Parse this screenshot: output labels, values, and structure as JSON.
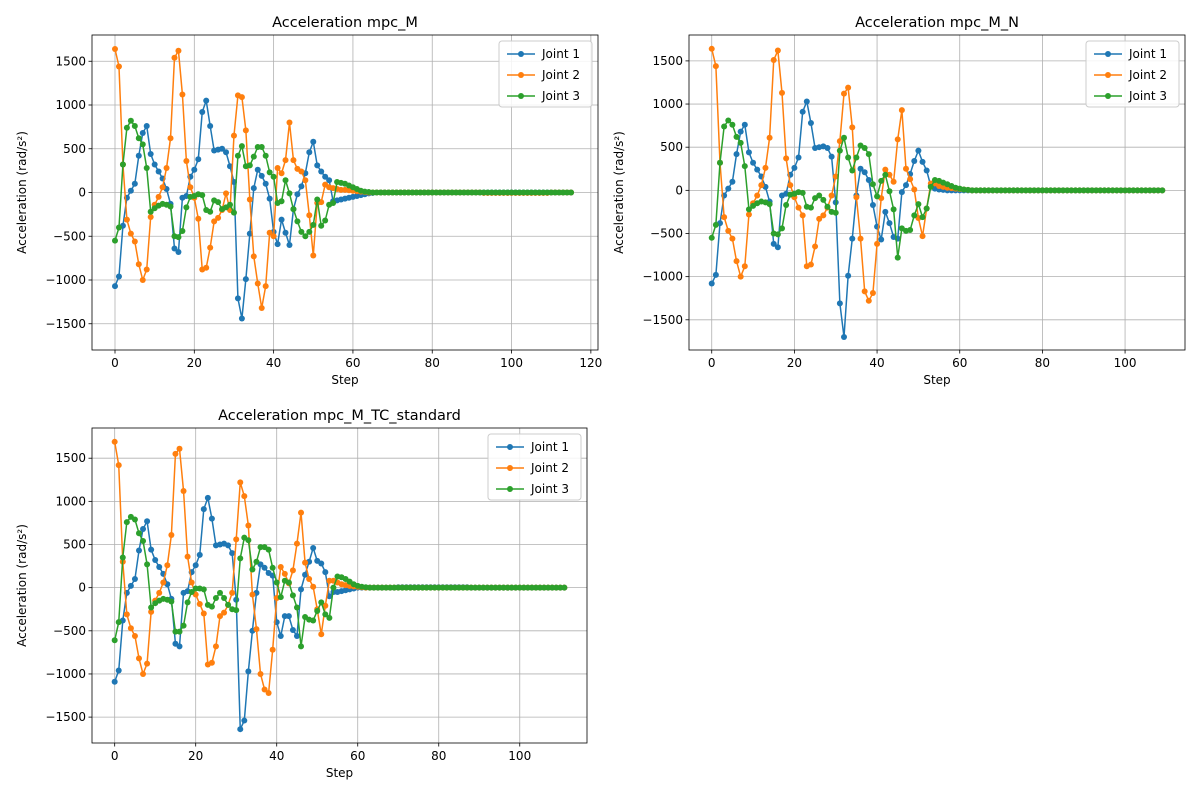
{
  "figure": {
    "background": "#ffffff"
  },
  "colors": {
    "joint1": "#1f77b4",
    "joint2": "#ff7f0e",
    "joint3": "#2ca02c",
    "grid": "#b0b0b0",
    "axis": "#000000"
  },
  "chart_data": [
    {
      "type": "line",
      "title": "Acceleration mpc_M",
      "xlabel": "Step",
      "ylabel": "Acceleration (rad/s²)",
      "xlim": [
        -5.8,
        121.8
      ],
      "ylim": [
        -1800,
        1800
      ],
      "xticks": [
        0,
        20,
        40,
        60,
        80,
        100,
        120
      ],
      "yticks": [
        -1500,
        -1000,
        -500,
        0,
        500,
        1000,
        1500
      ],
      "grid": true,
      "legend": "top-right",
      "n_points": 116,
      "series": [
        {
          "name": "Joint 1",
          "color": "#1f77b4",
          "values": [
            -1070,
            -960,
            -380,
            -60,
            20,
            100,
            420,
            680,
            760,
            440,
            320,
            240,
            160,
            40,
            -130,
            -640,
            -680,
            -60,
            -40,
            180,
            260,
            380,
            920,
            1050,
            760,
            480,
            490,
            500,
            460,
            300,
            120,
            -1210,
            -1440,
            -990,
            -470,
            50,
            260,
            190,
            100,
            -70,
            -450,
            -590,
            -310,
            -460,
            -600,
            -190,
            -20,
            70,
            220,
            460,
            580,
            310,
            240,
            180,
            140,
            -100,
            -90,
            -80,
            -70,
            -60,
            -50,
            -40,
            -30,
            -20,
            -10,
            -5,
            0,
            0,
            0,
            0,
            0,
            0,
            0,
            0,
            0,
            0,
            0,
            0,
            0,
            0,
            0,
            0,
            0,
            0,
            0,
            0,
            0,
            0,
            0,
            0,
            0,
            0,
            0,
            0,
            0,
            0,
            0,
            0,
            0,
            0,
            0,
            0,
            0,
            0,
            0,
            0,
            0,
            0,
            0,
            0,
            0,
            0,
            0,
            0,
            0,
            0
          ]
        },
        {
          "name": "Joint 2",
          "color": "#ff7f0e",
          "values": [
            1640,
            1440,
            320,
            -310,
            -470,
            -560,
            -820,
            -1000,
            -880,
            -280,
            -140,
            -50,
            60,
            280,
            620,
            1540,
            1620,
            1120,
            360,
            60,
            -60,
            -300,
            -880,
            -860,
            -630,
            -330,
            -290,
            -200,
            -10,
            -200,
            650,
            1110,
            1090,
            710,
            -80,
            -730,
            -1040,
            -1320,
            -1070,
            -460,
            -500,
            280,
            220,
            370,
            800,
            370,
            270,
            240,
            140,
            -260,
            -720,
            -120,
            -110,
            90,
            60,
            50,
            40,
            30,
            30,
            25,
            20,
            15,
            10,
            5,
            0,
            0,
            0,
            0,
            0,
            0,
            0,
            0,
            0,
            0,
            0,
            0,
            0,
            0,
            0,
            0,
            0,
            0,
            0,
            0,
            0,
            0,
            0,
            0,
            0,
            0,
            0,
            0,
            0,
            -5,
            -5,
            -5,
            -5,
            -5,
            -5,
            -5,
            -5,
            -5,
            -5,
            -5,
            -5,
            -5,
            -5,
            -5,
            -5,
            -5,
            0,
            0,
            0,
            0,
            0,
            0
          ]
        },
        {
          "name": "Joint 3",
          "color": "#2ca02c",
          "values": [
            -550,
            -400,
            320,
            740,
            820,
            760,
            620,
            550,
            280,
            -220,
            -180,
            -150,
            -130,
            -140,
            -160,
            -500,
            -510,
            -440,
            -170,
            -50,
            -40,
            -20,
            -30,
            -200,
            -220,
            -90,
            -110,
            -190,
            -170,
            -140,
            -230,
            420,
            530,
            300,
            310,
            410,
            520,
            520,
            420,
            230,
            180,
            -120,
            -100,
            140,
            -10,
            -190,
            -330,
            -450,
            -500,
            -450,
            -370,
            -80,
            -380,
            -320,
            -140,
            -120,
            120,
            110,
            100,
            80,
            60,
            40,
            20,
            10,
            5,
            0,
            0,
            0,
            0,
            0,
            0,
            0,
            0,
            0,
            0,
            0,
            0,
            0,
            0,
            0,
            0,
            0,
            0,
            0,
            0,
            0,
            0,
            0,
            0,
            0,
            0,
            0,
            0,
            0,
            0,
            0,
            0,
            0,
            0,
            0,
            0,
            0,
            0,
            0,
            0,
            0,
            0,
            0,
            0,
            0,
            0,
            0,
            0,
            0,
            0,
            0
          ]
        }
      ]
    },
    {
      "type": "line",
      "title": "Acceleration mpc_M_N",
      "xlabel": "Step",
      "ylabel": "Acceleration (rad/s²)",
      "xlim": [
        -5.5,
        114.5
      ],
      "ylim": [
        -1850,
        1800
      ],
      "xticks": [
        0,
        20,
        40,
        60,
        80,
        100
      ],
      "yticks": [
        -1500,
        -1000,
        -500,
        0,
        500,
        1000,
        1500
      ],
      "grid": true,
      "legend": "top-right",
      "n_points": 110,
      "series": [
        {
          "name": "Joint 1",
          "color": "#1f77b4",
          "values": [
            -1080,
            -980,
            -380,
            -60,
            20,
            100,
            420,
            680,
            760,
            440,
            320,
            240,
            160,
            40,
            -130,
            -620,
            -660,
            -60,
            -40,
            180,
            260,
            380,
            910,
            1030,
            780,
            490,
            500,
            510,
            490,
            390,
            -140,
            -1310,
            -1700,
            -990,
            -560,
            -60,
            250,
            210,
            120,
            -170,
            -420,
            -570,
            -250,
            -380,
            -540,
            -560,
            -20,
            60,
            190,
            340,
            460,
            330,
            230,
            50,
            20,
            10,
            5,
            0,
            0,
            0,
            0,
            0,
            0,
            0,
            0,
            0,
            0,
            0,
            0,
            0,
            0,
            0,
            0,
            0,
            0,
            0,
            0,
            0,
            0,
            0,
            0,
            0,
            0,
            0,
            0,
            0,
            0,
            0,
            0,
            0,
            0,
            0,
            0,
            0,
            0,
            0,
            0,
            0,
            0,
            0,
            0,
            0,
            0,
            0,
            0,
            0,
            0,
            0,
            0,
            0
          ]
        },
        {
          "name": "Joint 2",
          "color": "#ff7f0e",
          "values": [
            1640,
            1440,
            320,
            -310,
            -470,
            -560,
            -820,
            -1000,
            -880,
            -280,
            -150,
            -60,
            60,
            260,
            610,
            1510,
            1620,
            1130,
            370,
            60,
            -80,
            -200,
            -290,
            -880,
            -860,
            -650,
            -330,
            -290,
            -200,
            -60,
            160,
            570,
            1120,
            1190,
            730,
            -80,
            -560,
            -1170,
            -1280,
            -1190,
            -620,
            -90,
            240,
            180,
            100,
            590,
            930,
            250,
            130,
            10,
            -320,
            -530,
            -210,
            80,
            80,
            50,
            40,
            30,
            25,
            20,
            15,
            10,
            5,
            0,
            0,
            0,
            0,
            0,
            0,
            0,
            0,
            0,
            0,
            0,
            0,
            0,
            0,
            0,
            0,
            0,
            0,
            0,
            0,
            0,
            0,
            0,
            0,
            0,
            0,
            0,
            0,
            0,
            0,
            0,
            0,
            0,
            0,
            0,
            0,
            0,
            0,
            0,
            0,
            0,
            0,
            0,
            0,
            0,
            0,
            0
          ]
        },
        {
          "name": "Joint 3",
          "color": "#2ca02c",
          "values": [
            -550,
            -400,
            320,
            740,
            810,
            760,
            620,
            550,
            280,
            -220,
            -180,
            -150,
            -130,
            -140,
            -160,
            -500,
            -510,
            -440,
            -170,
            -50,
            -40,
            -20,
            -30,
            -190,
            -200,
            -90,
            -60,
            -110,
            -190,
            -250,
            -260,
            460,
            610,
            380,
            230,
            380,
            520,
            490,
            420,
            70,
            -70,
            110,
            180,
            -10,
            -220,
            -780,
            -440,
            -470,
            -460,
            -290,
            -160,
            -310,
            -210,
            40,
            120,
            110,
            90,
            70,
            50,
            30,
            20,
            10,
            5,
            0,
            0,
            0,
            0,
            0,
            0,
            0,
            0,
            0,
            0,
            0,
            0,
            0,
            0,
            0,
            0,
            0,
            0,
            0,
            0,
            0,
            0,
            0,
            0,
            0,
            0,
            0,
            0,
            0,
            0,
            0,
            0,
            0,
            0,
            0,
            0,
            0,
            0,
            0,
            0,
            0,
            0,
            0,
            0,
            0,
            0,
            0
          ]
        }
      ]
    },
    {
      "type": "line",
      "title": "Acceleration mpc_M_TC_standard",
      "xlabel": "Step",
      "ylabel": "Acceleration (rad/s²)",
      "xlim": [
        -5.6,
        116.6
      ],
      "ylim": [
        -1800,
        1850
      ],
      "xticks": [
        0,
        20,
        40,
        60,
        80,
        100
      ],
      "yticks": [
        -1500,
        -1000,
        -500,
        0,
        500,
        1000,
        1500
      ],
      "grid": true,
      "legend": "top-right",
      "n_points": 112,
      "series": [
        {
          "name": "Joint 1",
          "color": "#1f77b4",
          "values": [
            -1090,
            -960,
            -380,
            -60,
            20,
            100,
            430,
            680,
            770,
            440,
            320,
            240,
            160,
            40,
            -130,
            -650,
            -680,
            -60,
            -40,
            180,
            260,
            380,
            910,
            1040,
            800,
            490,
            500,
            510,
            490,
            400,
            -140,
            -1640,
            -1540,
            -970,
            -500,
            -60,
            270,
            230,
            170,
            140,
            -400,
            -560,
            -330,
            -330,
            -490,
            -560,
            -20,
            150,
            300,
            460,
            310,
            280,
            180,
            -100,
            -50,
            -50,
            -40,
            -30,
            -20,
            -10,
            0,
            0,
            0,
            0,
            0,
            0,
            0,
            0,
            0,
            0,
            5,
            5,
            5,
            5,
            5,
            5,
            5,
            5,
            5,
            5,
            5,
            5,
            5,
            5,
            5,
            5,
            5,
            5,
            0,
            0,
            0,
            0,
            0,
            0,
            0,
            0,
            0,
            0,
            0,
            0,
            0,
            0,
            0,
            0,
            0,
            0,
            0,
            0,
            0,
            0,
            0,
            0
          ]
        },
        {
          "name": "Joint 2",
          "color": "#ff7f0e",
          "values": [
            1690,
            1420,
            300,
            -310,
            -470,
            -560,
            -820,
            -1000,
            -880,
            -280,
            -150,
            -60,
            60,
            260,
            610,
            1550,
            1610,
            1120,
            360,
            60,
            -80,
            -190,
            -300,
            -890,
            -870,
            -680,
            -330,
            -290,
            -200,
            -60,
            560,
            1220,
            1060,
            720,
            -80,
            -480,
            -1000,
            -1180,
            -1220,
            -720,
            -120,
            240,
            160,
            50,
            200,
            510,
            870,
            290,
            100,
            10,
            -250,
            -540,
            -210,
            80,
            80,
            60,
            40,
            30,
            20,
            15,
            10,
            5,
            0,
            0,
            0,
            0,
            0,
            0,
            0,
            0,
            0,
            0,
            0,
            0,
            0,
            0,
            0,
            0,
            0,
            0,
            0,
            0,
            0,
            0,
            0,
            0,
            0,
            0,
            0,
            0,
            0,
            0,
            0,
            0,
            0,
            0,
            0,
            0,
            0,
            0,
            0,
            0,
            0,
            0,
            0,
            0,
            0,
            0,
            0,
            0,
            0,
            0
          ]
        },
        {
          "name": "Joint 3",
          "color": "#2ca02c",
          "values": [
            -610,
            -400,
            350,
            760,
            820,
            790,
            630,
            540,
            270,
            -230,
            -180,
            -150,
            -130,
            -140,
            -160,
            -510,
            -510,
            -440,
            -170,
            -50,
            -10,
            -10,
            -20,
            -200,
            -220,
            -120,
            -60,
            -120,
            -200,
            -250,
            -260,
            340,
            580,
            550,
            210,
            300,
            470,
            470,
            440,
            230,
            60,
            -110,
            80,
            60,
            -90,
            -230,
            -680,
            -340,
            -370,
            -380,
            -270,
            -170,
            -310,
            -350,
            0,
            130,
            120,
            100,
            70,
            40,
            20,
            10,
            5,
            0,
            0,
            0,
            0,
            0,
            0,
            0,
            0,
            0,
            0,
            0,
            0,
            0,
            0,
            0,
            0,
            0,
            0,
            0,
            0,
            0,
            0,
            0,
            0,
            0,
            0,
            0,
            0,
            0,
            0,
            0,
            0,
            0,
            0,
            0,
            0,
            0,
            0,
            0,
            0,
            0,
            0,
            0,
            0,
            0,
            0,
            0,
            0,
            0
          ]
        }
      ]
    }
  ]
}
